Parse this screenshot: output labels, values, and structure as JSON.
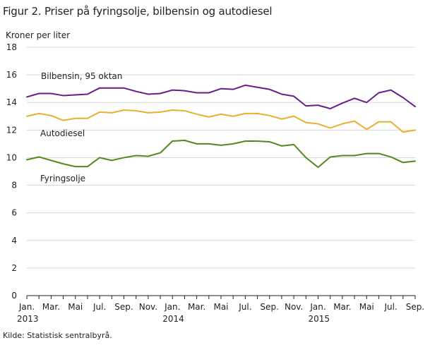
{
  "title": "Figur 2. Priser på fyringsolje, bilbensin og autodiesel",
  "source": "Kilde: Statistisk sentralbyrå.",
  "chart_data": {
    "type": "line",
    "ylabel": "Kroner per liter",
    "ylim": [
      0,
      18
    ],
    "yticks": [
      0,
      2,
      4,
      6,
      8,
      10,
      12,
      14,
      16,
      18
    ],
    "grid": "horizontal",
    "x_months": [
      "2013-01",
      "2013-02",
      "2013-03",
      "2013-04",
      "2013-05",
      "2013-06",
      "2013-07",
      "2013-08",
      "2013-09",
      "2013-10",
      "2013-11",
      "2013-12",
      "2014-01",
      "2014-02",
      "2014-03",
      "2014-04",
      "2014-05",
      "2014-06",
      "2014-07",
      "2014-08",
      "2014-09",
      "2014-10",
      "2014-11",
      "2014-12",
      "2015-01",
      "2015-02",
      "2015-03",
      "2015-04",
      "2015-05",
      "2015-06",
      "2015-07",
      "2015-08",
      "2015-09"
    ],
    "xticks": [
      {
        "index": 0,
        "label": "Jan."
      },
      {
        "index": 2,
        "label": "Mar."
      },
      {
        "index": 4,
        "label": "Mai"
      },
      {
        "index": 6,
        "label": "Jul."
      },
      {
        "index": 8,
        "label": "Sep."
      },
      {
        "index": 10,
        "label": "Nov."
      },
      {
        "index": 12,
        "label": "Jan."
      },
      {
        "index": 14,
        "label": "Mar."
      },
      {
        "index": 16,
        "label": "Mai"
      },
      {
        "index": 18,
        "label": "Jul."
      },
      {
        "index": 20,
        "label": "Sep."
      },
      {
        "index": 22,
        "label": "Nov."
      },
      {
        "index": 24,
        "label": "Jan."
      },
      {
        "index": 26,
        "label": "Mar."
      },
      {
        "index": 28,
        "label": "Mai"
      },
      {
        "index": 30,
        "label": "Jul."
      },
      {
        "index": 32,
        "label": "Sep."
      }
    ],
    "year_labels": [
      {
        "index": 0,
        "label": "2013"
      },
      {
        "index": 12,
        "label": "2014"
      },
      {
        "index": 24,
        "label": "2015"
      }
    ],
    "series": [
      {
        "name": "Bilbensin,  95 oktan",
        "color": "#6a1d8a",
        "values": [
          14.4,
          14.65,
          14.65,
          14.5,
          14.55,
          14.6,
          15.05,
          15.05,
          15.05,
          14.8,
          14.6,
          14.65,
          14.9,
          14.85,
          14.7,
          14.7,
          15.0,
          14.95,
          15.25,
          15.1,
          14.95,
          14.6,
          14.45,
          13.75,
          13.8,
          13.55,
          13.95,
          14.3,
          14.0,
          14.7,
          14.9,
          14.35,
          13.7
        ]
      },
      {
        "name": "Autodiesel",
        "color": "#e8b12a",
        "values": [
          13.0,
          13.2,
          13.05,
          12.7,
          12.85,
          12.85,
          13.3,
          13.25,
          13.45,
          13.4,
          13.25,
          13.3,
          13.45,
          13.4,
          13.15,
          12.95,
          13.15,
          13.0,
          13.2,
          13.2,
          13.05,
          12.8,
          13.0,
          12.55,
          12.45,
          12.15,
          12.45,
          12.65,
          12.05,
          12.6,
          12.6,
          11.85,
          12.0
        ]
      },
      {
        "name": "Fyringsolje",
        "color": "#4f8a1f",
        "values": [
          9.85,
          10.05,
          9.8,
          9.55,
          9.35,
          9.35,
          10.0,
          9.8,
          10.0,
          10.15,
          10.1,
          10.35,
          11.2,
          11.25,
          11.0,
          11.0,
          10.9,
          11.0,
          11.2,
          11.2,
          11.15,
          10.85,
          10.95,
          10.0,
          9.3,
          10.05,
          10.15,
          10.15,
          10.3,
          10.3,
          10.05,
          9.65,
          9.75
        ]
      }
    ]
  }
}
